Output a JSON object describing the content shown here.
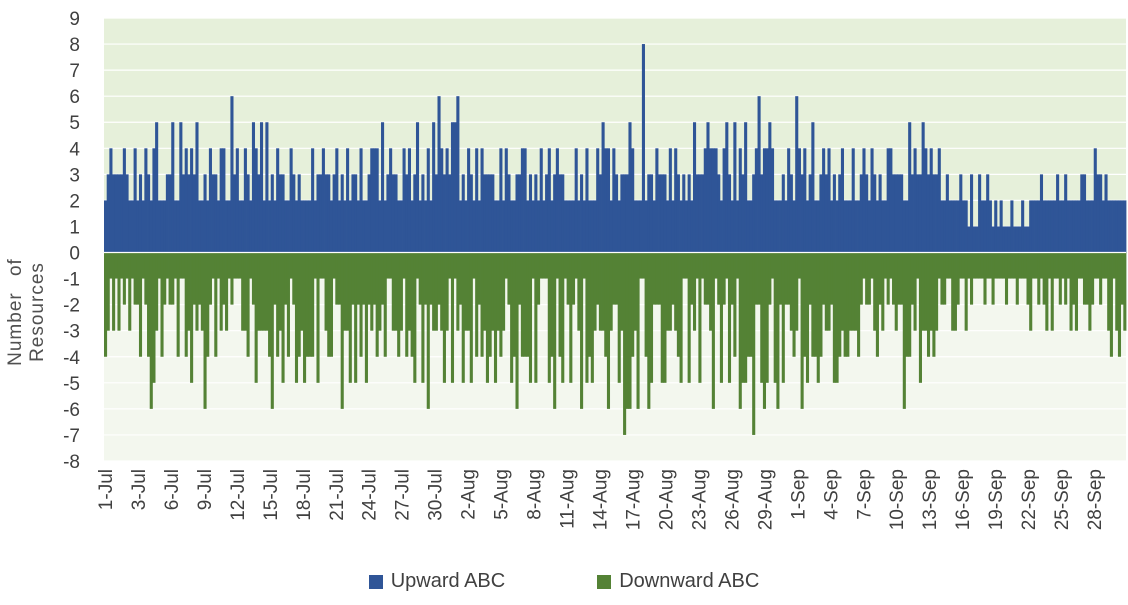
{
  "chart_data": {
    "type": "bar",
    "title": "",
    "xlabel": "",
    "ylabel": "Number of Resources",
    "ylim": [
      -8,
      9
    ],
    "yticks": [
      9,
      8,
      7,
      6,
      5,
      4,
      3,
      2,
      1,
      0,
      -1,
      -2,
      -3,
      -4,
      -5,
      -6,
      -7,
      -8
    ],
    "x_tick_labels": [
      "1-Jul",
      "3-Jul",
      "6-Jul",
      "9-Jul",
      "12-Jul",
      "15-Jul",
      "18-Jul",
      "21-Jul",
      "24-Jul",
      "27-Jul",
      "30-Jul",
      "2-Aug",
      "5-Aug",
      "8-Aug",
      "11-Aug",
      "14-Aug",
      "17-Aug",
      "20-Aug",
      "23-Aug",
      "26-Aug",
      "29-Aug",
      "1-Sep",
      "4-Sep",
      "7-Sep",
      "10-Sep",
      "13-Sep",
      "16-Sep",
      "19-Sep",
      "22-Sep",
      "25-Sep",
      "28-Sep"
    ],
    "x_period": [
      "1-Jul",
      "30-Sep"
    ],
    "legend_position": "bottom",
    "grid": true,
    "series": [
      {
        "name": "Upward ABC",
        "color": "#2F5597",
        "typical_level": [
          2,
          4
        ],
        "daily_max": [
          4,
          4,
          4,
          4,
          5,
          3,
          5,
          5,
          5,
          4,
          4,
          6,
          4,
          5,
          5,
          5,
          4,
          4,
          3,
          4,
          4,
          4,
          4,
          4,
          4,
          5,
          4,
          4,
          4,
          5,
          5,
          6,
          6,
          4,
          4,
          4,
          4,
          4,
          4,
          4,
          4,
          4,
          4,
          4,
          4,
          4,
          5,
          4,
          5,
          4,
          8,
          4,
          4,
          4,
          5,
          4,
          5,
          5,
          5,
          5,
          6,
          5,
          4,
          4,
          6,
          5,
          4,
          4,
          4,
          4,
          4,
          4,
          4,
          4,
          5,
          4,
          5,
          4,
          3,
          3,
          3,
          3,
          3,
          2,
          2,
          2,
          2,
          3,
          3,
          3,
          3,
          3,
          4,
          3,
          2
        ]
      },
      {
        "name": "Downward ABC",
        "color": "#548235",
        "typical_level": [
          -1,
          -3
        ],
        "daily_min": [
          -4,
          -3,
          -3,
          -4,
          -6,
          -4,
          -4,
          -4,
          -5,
          -6,
          -4,
          -3,
          -3,
          -4,
          -5,
          -6,
          -5,
          -5,
          -5,
          -5,
          -4,
          -4,
          -6,
          -5,
          -5,
          -4,
          -4,
          -4,
          -5,
          -5,
          -6,
          -5,
          -5,
          -5,
          -5,
          -5,
          -5,
          -5,
          -6,
          -5,
          -5,
          -6,
          -5,
          -5,
          -6,
          -5,
          -6,
          -5,
          -7,
          -6,
          -6,
          -5,
          -5,
          -5,
          -5,
          -5,
          -6,
          -5,
          -5,
          -6,
          -7,
          -6,
          -6,
          -5,
          -6,
          -5,
          -5,
          -5,
          -5,
          -4,
          -4,
          -4,
          -3,
          -3,
          -6,
          -5,
          -4,
          -4,
          -3,
          -3,
          -3,
          -2,
          -2,
          -2,
          -2,
          -2,
          -3,
          -3,
          -3,
          -3,
          -3,
          -3,
          -2,
          -4,
          -4
        ]
      }
    ]
  }
}
